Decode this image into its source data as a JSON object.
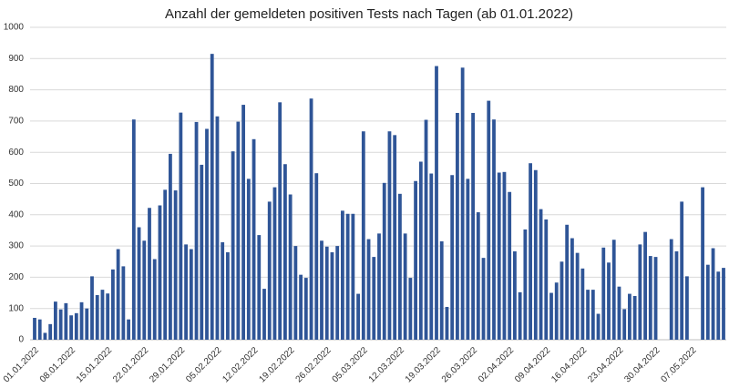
{
  "chart_data": {
    "type": "bar",
    "title": "Anzahl der gemeldeten positiven Tests nach Tagen (ab 01.01.2022)",
    "color": "#2f5597",
    "grid": true,
    "ylim": [
      0,
      1000
    ],
    "yticks": [
      0,
      100,
      200,
      300,
      400,
      500,
      600,
      700,
      800,
      900,
      1000
    ],
    "categories": [
      "01.01.2022",
      null,
      null,
      null,
      null,
      null,
      null,
      "08.01.2022",
      null,
      null,
      null,
      null,
      null,
      null,
      "15.01.2022",
      null,
      null,
      null,
      null,
      null,
      null,
      "22.01.2022",
      null,
      null,
      null,
      null,
      null,
      null,
      "29.01.2022",
      null,
      null,
      null,
      null,
      null,
      null,
      "05.02.2022",
      null,
      null,
      null,
      null,
      null,
      null,
      "12.02.2022",
      null,
      null,
      null,
      null,
      null,
      null,
      "19.02.2022",
      null,
      null,
      null,
      null,
      null,
      null,
      "26.02.2022",
      null,
      null,
      null,
      null,
      null,
      null,
      "05.03.2022",
      null,
      null,
      null,
      null,
      null,
      null,
      "12.03.2022",
      null,
      null,
      null,
      null,
      null,
      null,
      "19.03.2022",
      null,
      null,
      null,
      null,
      null,
      null,
      "26.03.2022",
      null,
      null,
      null,
      null,
      null,
      null,
      "02.04.2022",
      null,
      null,
      null,
      null,
      null,
      null,
      "09.04.2022",
      null,
      null,
      null,
      null,
      null,
      null,
      "16.04.2022",
      null,
      null,
      null,
      null,
      null,
      null,
      "23.04.2022",
      null,
      null,
      null,
      null,
      null,
      null,
      "30.04.2022",
      null,
      null,
      null,
      null,
      null,
      null,
      "07.05.2022",
      null,
      null,
      null,
      null,
      null,
      null
    ],
    "values": [
      70,
      65,
      22,
      50,
      122,
      97,
      117,
      78,
      85,
      120,
      100,
      203,
      143,
      160,
      148,
      225,
      290,
      235,
      65,
      705,
      360,
      317,
      422,
      258,
      430,
      480,
      595,
      478,
      727,
      305,
      290,
      697,
      560,
      675,
      915,
      715,
      312,
      280,
      603,
      698,
      752,
      515,
      642,
      335,
      163,
      442,
      488,
      760,
      562,
      465,
      300,
      208,
      198,
      772,
      533,
      317,
      298,
      280,
      300,
      413,
      403,
      403,
      147,
      667,
      322,
      265,
      340,
      502,
      667,
      655,
      467,
      340,
      198,
      508,
      570,
      704,
      532,
      876,
      315,
      105,
      527,
      726,
      871,
      515,
      726,
      408,
      262,
      765,
      705,
      535,
      537,
      473,
      283,
      152,
      353,
      565,
      543,
      418,
      385,
      150,
      183,
      250,
      368,
      325,
      278,
      228,
      160,
      160,
      83,
      295,
      247,
      320,
      170,
      98,
      147,
      140,
      305,
      345,
      268,
      265,
      null,
      null,
      322,
      283,
      442,
      203,
      null,
      null,
      488,
      240,
      293,
      218,
      230
    ]
  }
}
